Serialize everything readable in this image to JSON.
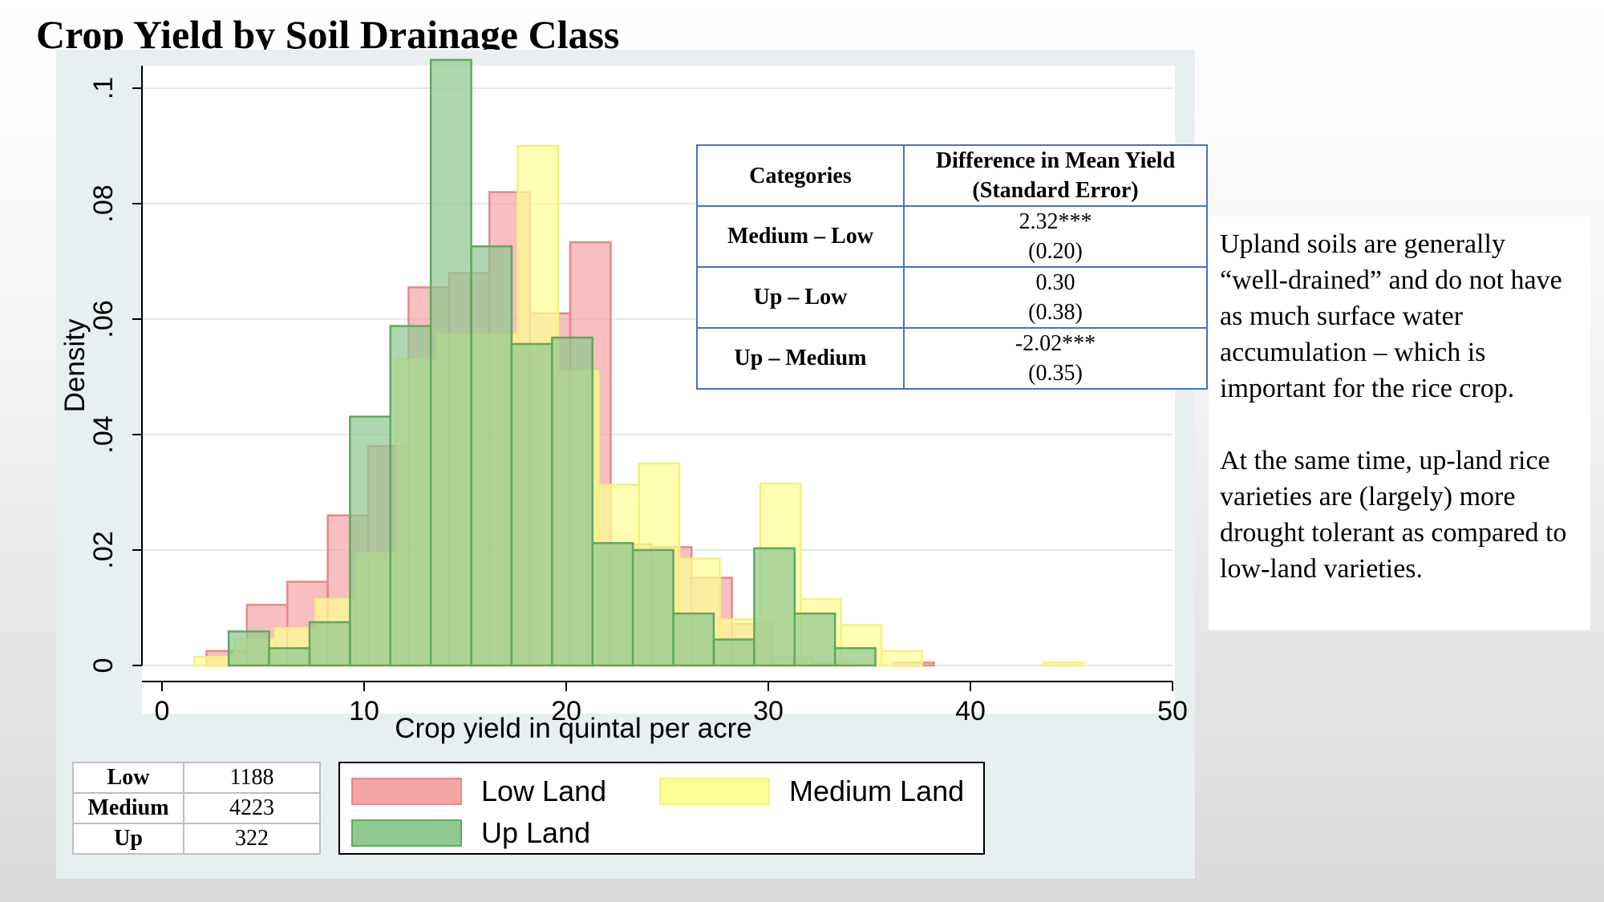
{
  "title": "Crop Yield by Soil Drainage Class",
  "chart_data": {
    "type": "histogram",
    "xlabel": "Crop yield in quintal per acre",
    "ylabel": "Density",
    "xlim": [
      0,
      50
    ],
    "ylim": [
      0,
      0.1
    ],
    "x_ticks": [
      "0",
      "10",
      "20",
      "30",
      "40",
      "50"
    ],
    "y_ticks": [
      "0",
      ".02",
      ".04",
      ".06",
      ".08",
      ".1"
    ],
    "grid": "horizontal",
    "legend": "below",
    "series": [
      {
        "name": "Low Land",
        "fill": "#f4a6a6",
        "stroke": "#e88888",
        "bins": [
          [
            2.2,
            4.2,
            0.0025
          ],
          [
            4.2,
            6.2,
            0.0105
          ],
          [
            6.2,
            8.2,
            0.0145
          ],
          [
            8.2,
            10.2,
            0.026
          ],
          [
            10.2,
            12.2,
            0.038
          ],
          [
            12.2,
            14.2,
            0.0655
          ],
          [
            14.2,
            16.2,
            0.068
          ],
          [
            16.2,
            18.2,
            0.082
          ],
          [
            18.2,
            20.2,
            0.061
          ],
          [
            20.2,
            22.2,
            0.0733
          ],
          [
            22.2,
            24.2,
            0.021
          ],
          [
            24.2,
            26.2,
            0.0205
          ],
          [
            26.2,
            28.2,
            0.0152
          ],
          [
            28.2,
            30.2,
            0.0072
          ],
          [
            30.2,
            32.2,
            0.0014
          ],
          [
            32.2,
            34.2,
            0.0005
          ],
          [
            36.2,
            38.2,
            0.0005
          ]
        ]
      },
      {
        "name": "Medium Land",
        "fill": "#ffff96",
        "stroke": "#f2f27a",
        "bins": [
          [
            1.6,
            3.6,
            0.0015
          ],
          [
            3.6,
            5.6,
            0.0045
          ],
          [
            5.6,
            7.6,
            0.0065
          ],
          [
            7.6,
            9.6,
            0.0115
          ],
          [
            9.6,
            11.6,
            0.0195
          ],
          [
            11.6,
            13.6,
            0.053
          ],
          [
            13.6,
            15.6,
            0.0573
          ],
          [
            15.6,
            17.6,
            0.0573
          ],
          [
            17.6,
            19.6,
            0.09
          ],
          [
            19.6,
            21.6,
            0.051
          ],
          [
            21.6,
            23.6,
            0.0313
          ],
          [
            23.6,
            25.6,
            0.035
          ],
          [
            25.6,
            27.6,
            0.0185
          ],
          [
            27.6,
            29.6,
            0.008
          ],
          [
            29.6,
            31.6,
            0.0315
          ],
          [
            31.6,
            33.6,
            0.0115
          ],
          [
            33.6,
            35.6,
            0.007
          ],
          [
            35.6,
            37.6,
            0.0025
          ],
          [
            43.6,
            45.6,
            0.0005
          ]
        ]
      },
      {
        "name": "Up Land",
        "fill": "#90c890",
        "stroke": "#5caa5c",
        "bins": [
          [
            3.3,
            5.3,
            0.0059
          ],
          [
            5.3,
            7.3,
            0.003
          ],
          [
            7.3,
            9.3,
            0.0075
          ],
          [
            9.3,
            11.3,
            0.0431
          ],
          [
            11.3,
            13.3,
            0.0588
          ],
          [
            13.3,
            15.3,
            0.1049
          ],
          [
            15.3,
            17.3,
            0.0726
          ],
          [
            17.3,
            19.3,
            0.0557
          ],
          [
            19.3,
            21.3,
            0.0568
          ],
          [
            21.3,
            23.3,
            0.0212
          ],
          [
            23.3,
            25.3,
            0.02
          ],
          [
            25.3,
            27.3,
            0.009
          ],
          [
            27.3,
            29.3,
            0.0045
          ],
          [
            29.3,
            31.3,
            0.0203
          ],
          [
            31.3,
            33.3,
            0.009
          ],
          [
            33.3,
            35.3,
            0.003
          ]
        ]
      }
    ]
  },
  "diff_table": {
    "headers": [
      "Categories",
      "Difference in Mean Yield",
      "(Standard Error)"
    ],
    "rows": [
      {
        "category": "Medium – Low",
        "diff": "2.32***",
        "se": "(0.20)"
      },
      {
        "category": "Up – Low",
        "diff": "0.30",
        "se": "(0.38)"
      },
      {
        "category": "Up – Medium",
        "diff": "-2.02***",
        "se": "(0.35)"
      }
    ]
  },
  "count_table": [
    {
      "label": "Low",
      "count": "1188"
    },
    {
      "label": "Medium",
      "count": "4223"
    },
    {
      "label": "Up",
      "count": "322"
    }
  ],
  "legend": [
    {
      "label": "Low Land",
      "fill": "#f4a6a6",
      "stroke": "#e88888"
    },
    {
      "label": "Medium Land",
      "fill": "#ffff96",
      "stroke": "#f2f27a"
    },
    {
      "label": "Up Land",
      "fill": "#90c890",
      "stroke": "#5caa5c"
    }
  ],
  "notes": [
    "Upland soils are generally “well-drained” and do not have as much surface water accumulation – which is important for the rice crop.",
    "At the same time, up-land rice varieties are (largely) more drought tolerant as compared to low-land varieties."
  ]
}
